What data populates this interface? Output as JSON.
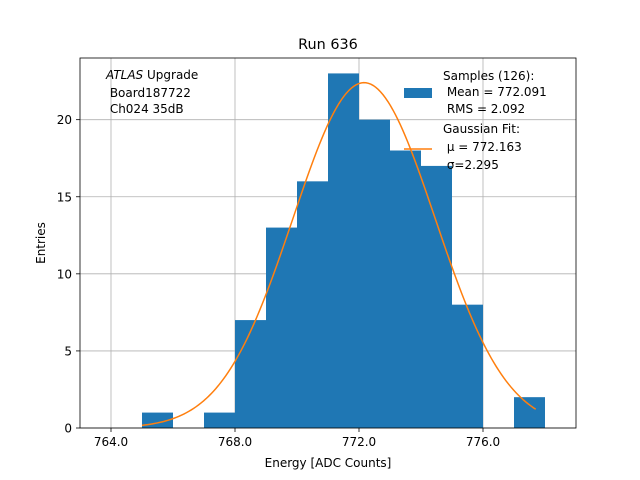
{
  "chart_data": {
    "type": "histogram",
    "title": "Run 636",
    "xlabel": "Energy [ADC Counts]",
    "ylabel": "Entries",
    "xlim": [
      763.0,
      779.0
    ],
    "ylim": [
      0,
      24
    ],
    "grid": true,
    "x_ticks": [
      764.0,
      768.0,
      772.0,
      776.0
    ],
    "x_tick_labels": [
      "764.0",
      "768.0",
      "772.0",
      "776.0"
    ],
    "y_ticks": [
      0,
      5,
      10,
      15,
      20
    ],
    "y_tick_labels": [
      "0",
      "5",
      "10",
      "15",
      "20"
    ],
    "bar_color": "#1f77b4",
    "fit_color": "#ff7f0e",
    "bins": [
      {
        "left": 765,
        "right": 766,
        "count": 1
      },
      {
        "left": 767,
        "right": 768,
        "count": 1
      },
      {
        "left": 768,
        "right": 769,
        "count": 7
      },
      {
        "left": 769,
        "right": 770,
        "count": 13
      },
      {
        "left": 770,
        "right": 771,
        "count": 16
      },
      {
        "left": 771,
        "right": 772,
        "count": 23
      },
      {
        "left": 772,
        "right": 773,
        "count": 20
      },
      {
        "left": 773,
        "right": 774,
        "count": 18
      },
      {
        "left": 774,
        "right": 775,
        "count": 17
      },
      {
        "left": 775,
        "right": 776,
        "count": 8
      },
      {
        "left": 777,
        "right": 778,
        "count": 2
      }
    ],
    "fit": {
      "type": "gaussian",
      "mu": 772.163,
      "sigma": 2.295,
      "amplitude": 22.4,
      "x_range": [
        765.0,
        777.7
      ]
    },
    "annotation_lines": [
      "ATLAS Upgrade",
      " Board187722",
      " Ch024 35dB"
    ],
    "annotation_italic_word": "ATLAS",
    "annotation_rest": " Upgrade",
    "legend_position": "top-right",
    "legend": {
      "samples": [
        "Samples (126):",
        " Mean = 772.091",
        " RMS = 2.092"
      ],
      "fit": [
        "Gaussian Fit:",
        " μ = 772.163",
        " σ=2.295"
      ]
    }
  }
}
